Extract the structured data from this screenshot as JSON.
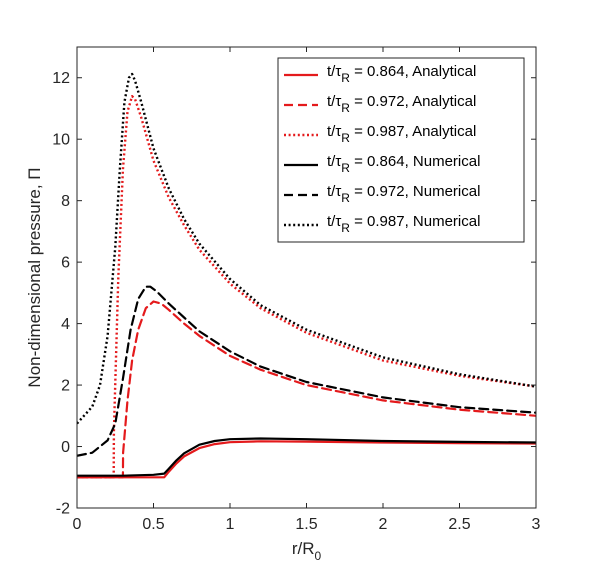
{
  "chart_data": {
    "type": "line",
    "xlabel": "r/R",
    "xlabel_sub": "0",
    "ylabel": "Non-dimensional pressure, Π",
    "xlim": [
      0,
      3
    ],
    "ylim": [
      -2,
      13
    ],
    "xticks": [
      0,
      0.5,
      1,
      1.5,
      2,
      2.5,
      3
    ],
    "xtick_labels": [
      "0",
      "0.5",
      "1",
      "1.5",
      "2",
      "2.5",
      "3"
    ],
    "yticks": [
      -2,
      0,
      2,
      4,
      6,
      8,
      10,
      12
    ],
    "ytick_labels": [
      "-2",
      "0",
      "2",
      "4",
      "6",
      "8",
      "10",
      "12"
    ],
    "grid": false,
    "legend_position": "top-right",
    "series": [
      {
        "name": "t/τR = 0.864, Analytical",
        "legend": {
          "prefix": "t/τ",
          "sub": "R",
          "suffix": " = 0.864, Analytical"
        },
        "color": "#e41a1c",
        "style": "solid",
        "x": [
          0,
          0.5,
          0.57,
          0.6,
          0.65,
          0.7,
          0.8,
          0.9,
          1.0,
          1.2,
          1.5,
          2.0,
          2.5,
          3.0
        ],
        "y": [
          -1.0,
          -1.0,
          -1.0,
          -0.82,
          -0.55,
          -0.32,
          -0.05,
          0.08,
          0.14,
          0.17,
          0.16,
          0.13,
          0.11,
          0.1
        ]
      },
      {
        "name": "t/τR = 0.972, Analytical",
        "legend": {
          "prefix": "t/τ",
          "sub": "R",
          "suffix": " = 0.972, Analytical"
        },
        "color": "#e41a1c",
        "style": "dashed",
        "x": [
          0,
          0.3,
          0.301,
          0.33,
          0.36,
          0.4,
          0.45,
          0.5,
          0.55,
          0.6,
          0.7,
          0.8,
          1.0,
          1.2,
          1.5,
          2.0,
          2.5,
          3.0
        ],
        "y": [
          -1.0,
          -1.0,
          -0.2,
          1.5,
          2.8,
          3.8,
          4.5,
          4.72,
          4.65,
          4.45,
          4.0,
          3.6,
          2.95,
          2.5,
          2.0,
          1.5,
          1.2,
          1.0
        ]
      },
      {
        "name": "t/τR = 0.987, Analytical",
        "legend": {
          "prefix": "t/τ",
          "sub": "R",
          "suffix": " = 0.987, Analytical"
        },
        "color": "#e41a1c",
        "style": "dotted",
        "x": [
          0,
          0.24,
          0.241,
          0.27,
          0.3,
          0.33,
          0.36,
          0.38,
          0.42,
          0.5,
          0.6,
          0.7,
          0.8,
          1.0,
          1.2,
          1.5,
          2.0,
          2.5,
          3.0
        ],
        "y": [
          -1.0,
          -1.0,
          0.5,
          5.5,
          9.0,
          10.9,
          11.4,
          11.3,
          10.7,
          9.3,
          8.1,
          7.2,
          6.4,
          5.3,
          4.5,
          3.7,
          2.8,
          2.3,
          1.95
        ]
      },
      {
        "name": "t/τR = 0.864, Numerical",
        "legend": {
          "prefix": "t/τ",
          "sub": "R",
          "suffix": " = 0.864, Numerical"
        },
        "color": "#000000",
        "style": "solid",
        "x": [
          0,
          0.3,
          0.5,
          0.57,
          0.6,
          0.65,
          0.7,
          0.8,
          0.9,
          1.0,
          1.2,
          1.5,
          2.0,
          2.5,
          3.0
        ],
        "y": [
          -0.95,
          -0.95,
          -0.92,
          -0.88,
          -0.72,
          -0.45,
          -0.22,
          0.06,
          0.18,
          0.24,
          0.26,
          0.24,
          0.18,
          0.15,
          0.13
        ]
      },
      {
        "name": "t/τR = 0.972, Numerical",
        "legend": {
          "prefix": "t/τ",
          "sub": "R",
          "suffix": " = 0.972, Numerical"
        },
        "color": "#000000",
        "style": "dashed",
        "x": [
          0,
          0.1,
          0.2,
          0.25,
          0.3,
          0.35,
          0.4,
          0.45,
          0.48,
          0.52,
          0.6,
          0.7,
          0.8,
          1.0,
          1.2,
          1.5,
          2.0,
          2.5,
          3.0
        ],
        "y": [
          -0.3,
          -0.2,
          0.2,
          0.75,
          2.2,
          3.8,
          4.8,
          5.2,
          5.2,
          5.05,
          4.65,
          4.2,
          3.75,
          3.1,
          2.6,
          2.1,
          1.6,
          1.28,
          1.1
        ]
      },
      {
        "name": "t/τR = 0.987, Numerical",
        "legend": {
          "prefix": "t/τ",
          "sub": "R",
          "suffix": " = 0.987, Numerical"
        },
        "color": "#000000",
        "style": "dotted",
        "x": [
          0,
          0.1,
          0.15,
          0.2,
          0.25,
          0.28,
          0.31,
          0.34,
          0.36,
          0.38,
          0.42,
          0.5,
          0.6,
          0.7,
          0.8,
          1.0,
          1.2,
          1.5,
          2.0,
          2.5,
          3.0
        ],
        "y": [
          0.75,
          1.3,
          2.0,
          3.6,
          6.5,
          9.0,
          11.2,
          12.0,
          12.12,
          11.9,
          11.2,
          9.7,
          8.4,
          7.4,
          6.6,
          5.45,
          4.6,
          3.8,
          2.9,
          2.35,
          1.95
        ]
      }
    ]
  }
}
